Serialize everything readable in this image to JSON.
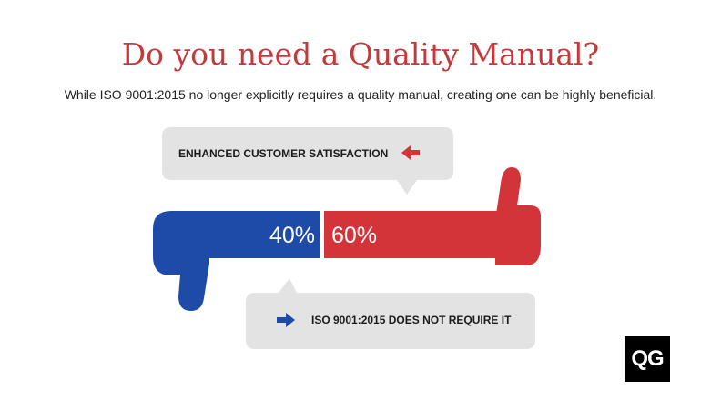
{
  "title": "Do you need a Quality Manual?",
  "subtitle": "While ISO 9001:2015 no longer explicitly requires a quality manual, creating one can be highly beneficial.",
  "bubbles": {
    "top": "ENHANCED CUSTOMER SATISFACTION",
    "bottom": "ISO 9001:2015 DOES NOT REQUIRE IT"
  },
  "logo": "QG",
  "colors": {
    "no": "#1e4aa8",
    "yes": "#d3343a",
    "bubble": "#e3e3e3",
    "title": "#c8373a"
  },
  "chart_data": {
    "type": "bar",
    "orientation": "horizontal-stacked",
    "categories": [
      "ISO 9001:2015 DOES NOT REQUIRE IT",
      "ENHANCED CUSTOMER SATISFACTION"
    ],
    "values": [
      40,
      60
    ],
    "labels": [
      "40%",
      "60%"
    ],
    "title": "Do you need a Quality Manual?",
    "xlabel": "",
    "ylabel": "",
    "ylim": [
      0,
      100
    ]
  }
}
